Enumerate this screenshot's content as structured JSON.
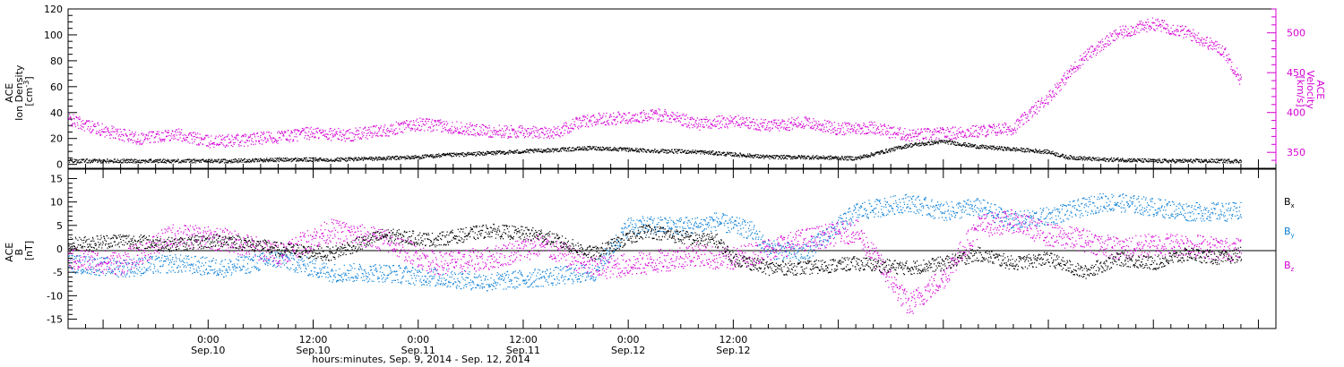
{
  "chart_data": [
    {
      "type": "scatter",
      "panel": "top",
      "ylabel_left": [
        "ACE",
        "Ion Density",
        "[cm",
        "-3",
        "]"
      ],
      "ylabel_right": [
        "ACE",
        "Velocity",
        "[km/s]"
      ],
      "ylim_left": [
        -3,
        120
      ],
      "ylim_right": [
        330,
        530
      ],
      "yticks_left": [
        0,
        20,
        40,
        60,
        80,
        100,
        120
      ],
      "yticks_right": [
        350,
        400,
        450,
        500
      ],
      "series": [
        {
          "axis": "left",
          "color": "#000000",
          "x_hours": [
            0,
            6,
            12,
            18,
            24,
            30,
            36,
            40,
            42,
            48,
            54,
            60,
            66,
            72,
            74,
            76,
            78,
            80,
            84,
            90,
            96,
            100,
            104,
            108,
            112,
            114,
            118,
            120,
            124
          ],
          "values": [
            3,
            3,
            3,
            3,
            4,
            4,
            5,
            6,
            7,
            9,
            11,
            13,
            11,
            10,
            9,
            8,
            7,
            6,
            6,
            5,
            15,
            18,
            14,
            12,
            10,
            6,
            4,
            4,
            3
          ]
        },
        {
          "axis": "right",
          "color": "#d400d4",
          "x_hours": [
            0,
            4,
            8,
            12,
            16,
            20,
            24,
            28,
            32,
            36,
            40,
            44,
            48,
            52,
            54,
            56,
            58,
            60,
            64,
            68,
            72,
            76,
            80,
            84,
            88,
            92,
            94,
            96,
            100,
            104,
            108,
            112,
            116,
            118,
            120,
            124,
            128,
            132,
            134
          ],
          "values": [
            392,
            378,
            368,
            374,
            364,
            366,
            370,
            375,
            372,
            378,
            386,
            382,
            377,
            376,
            376,
            376,
            387,
            392,
            394,
            398,
            386,
            390,
            384,
            388,
            380,
            382,
            376,
            372,
            374,
            377,
            381,
            420,
            470,
            485,
            500,
            512,
            500,
            478,
            440
          ]
        }
      ]
    },
    {
      "type": "scatter",
      "panel": "bottom",
      "ylabel": [
        "ACE",
        "B",
        "[nT]"
      ],
      "ylim": [
        -17,
        17
      ],
      "yticks": [
        -15,
        -10,
        -5,
        0,
        5,
        10,
        15
      ],
      "legend": [
        "Bx",
        "By",
        "Bz"
      ],
      "legend_colors": [
        "#000000",
        "#0a7fd6",
        "#d400d4"
      ],
      "series": [
        {
          "name": "Bx",
          "color": "#000000",
          "x_hours": [
            0,
            6,
            12,
            18,
            24,
            30,
            36,
            42,
            48,
            54,
            60,
            66,
            72,
            74,
            76,
            78,
            80,
            84,
            90,
            96,
            100,
            104,
            108,
            112,
            116,
            120,
            124,
            128,
            132,
            134
          ],
          "values": [
            1,
            2,
            1,
            2,
            0,
            -1,
            3,
            2,
            4,
            3,
            -1,
            4,
            2,
            2,
            -2,
            -3,
            -4,
            -4,
            -3,
            -4,
            -3,
            -1,
            -3,
            -2,
            -5,
            -2,
            -3,
            -1,
            -2,
            -1
          ]
        },
        {
          "name": "By",
          "color": "#0a7fd6",
          "x_hours": [
            0,
            6,
            12,
            18,
            24,
            30,
            36,
            42,
            48,
            54,
            60,
            64,
            66,
            72,
            74,
            76,
            78,
            80,
            84,
            90,
            96,
            100,
            104,
            108,
            112,
            116,
            118,
            120,
            124,
            128,
            134
          ],
          "values": [
            -3,
            -4,
            -3,
            -4,
            -2,
            -5,
            -5,
            -6,
            -7,
            -6,
            -5,
            5,
            5,
            5,
            6,
            5,
            4,
            0,
            -1,
            8,
            10,
            8,
            9,
            6,
            7,
            9,
            10,
            10,
            9,
            8,
            8
          ]
        },
        {
          "name": "Bz",
          "color": "#d400d4",
          "x_hours": [
            0,
            6,
            12,
            18,
            24,
            30,
            36,
            42,
            48,
            54,
            60,
            66,
            72,
            74,
            76,
            78,
            80,
            84,
            90,
            96,
            100,
            104,
            108,
            112,
            116,
            120,
            124,
            128,
            132,
            134
          ],
          "values": [
            -2,
            -3,
            3,
            2,
            -1,
            4,
            2,
            -3,
            -2,
            1,
            -4,
            -3,
            -1,
            -2,
            -2,
            -1,
            0,
            2,
            4,
            -12,
            -6,
            5,
            6,
            3,
            2,
            0,
            1,
            1,
            0,
            0
          ]
        }
      ]
    }
  ],
  "x_axis": {
    "range_hours": [
      0,
      138
    ],
    "ticks": [
      {
        "h": 16,
        "time": "0:00",
        "date": "Sep.10"
      },
      {
        "h": 28,
        "time": "12:00",
        "date": "Sep.10"
      },
      {
        "h": 40,
        "time": "0:00",
        "date": "Sep.11"
      },
      {
        "h": 52,
        "time": "12:00",
        "date": "Sep.11"
      },
      {
        "h": 64,
        "time": "0:00",
        "date": "Sep.12"
      },
      {
        "h": 76,
        "time": "12:00",
        "date": "Sep.12"
      }
    ],
    "xlabel": "hours:minutes, Sep.  9, 2014 - Sep. 12, 2014"
  },
  "legend_labels": {
    "bx": "B",
    "bx_sub": "x",
    "by": "B",
    "by_sub": "y",
    "bz": "B",
    "bz_sub": "z"
  }
}
